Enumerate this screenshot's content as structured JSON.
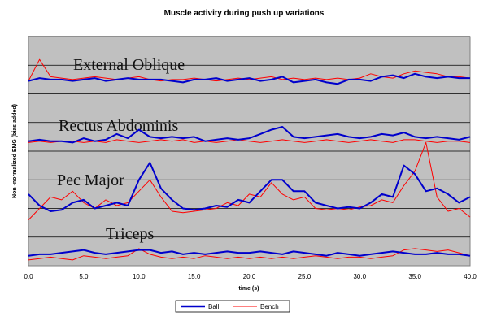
{
  "chart_data": {
    "type": "line",
    "title": "Muscle activity during push up variations",
    "xlabel": "time (s)",
    "ylabel": "Non -normalized EMG (bias added)",
    "xlim": [
      0,
      40
    ],
    "x_ticks": [
      "0.0",
      "5.0",
      "10.0",
      "15.0",
      "20.0",
      "25.0",
      "30.0",
      "35.0",
      "40.0"
    ],
    "ylim": [
      0,
      8
    ],
    "y_gridlines": [
      1,
      2,
      3,
      4,
      5,
      6,
      7,
      8
    ],
    "grid": true,
    "plot_background": "#c0c0c0",
    "legend_position": "bottom",
    "panel_labels": [
      "External Oblique",
      "Rectus Abdominis",
      "Pec Major",
      "Triceps"
    ],
    "series": [
      {
        "name": "Ball",
        "color": "#0000cc",
        "x": [
          0,
          1,
          2,
          3,
          4,
          5,
          6,
          7,
          8,
          9,
          10,
          11,
          12,
          13,
          14,
          15,
          16,
          17,
          18,
          19,
          20,
          21,
          22,
          23,
          24,
          25,
          26,
          27,
          28,
          29,
          30,
          31,
          32,
          33,
          34,
          35,
          36,
          37,
          38,
          39,
          40
        ],
        "values_external_oblique": [
          6.45,
          6.55,
          6.5,
          6.5,
          6.45,
          6.5,
          6.55,
          6.45,
          6.5,
          6.55,
          6.5,
          6.5,
          6.5,
          6.45,
          6.4,
          6.5,
          6.5,
          6.55,
          6.45,
          6.5,
          6.55,
          6.45,
          6.5,
          6.6,
          6.4,
          6.45,
          6.5,
          6.4,
          6.35,
          6.5,
          6.5,
          6.45,
          6.6,
          6.65,
          6.55,
          6.7,
          6.6,
          6.55,
          6.6,
          6.55,
          6.55
        ],
        "values_rectus_abdominis": [
          4.35,
          4.4,
          4.35,
          4.35,
          4.3,
          4.45,
          4.35,
          4.4,
          4.6,
          4.45,
          4.75,
          4.5,
          4.45,
          4.5,
          4.45,
          4.5,
          4.35,
          4.4,
          4.45,
          4.4,
          4.45,
          4.6,
          4.75,
          4.85,
          4.5,
          4.45,
          4.5,
          4.55,
          4.6,
          4.5,
          4.45,
          4.5,
          4.6,
          4.55,
          4.65,
          4.5,
          4.45,
          4.5,
          4.45,
          4.4,
          4.5
        ],
        "values_pec_major": [
          2.5,
          2.1,
          1.9,
          1.95,
          2.2,
          2.3,
          2.0,
          2.1,
          2.2,
          2.1,
          3.0,
          3.6,
          2.7,
          2.3,
          2.0,
          1.95,
          2.0,
          2.1,
          2.05,
          2.3,
          2.2,
          2.6,
          3.0,
          3.0,
          2.6,
          2.6,
          2.2,
          2.1,
          2.0,
          2.05,
          2.0,
          2.2,
          2.5,
          2.4,
          3.5,
          3.2,
          2.6,
          2.7,
          2.5,
          2.2,
          2.4
        ],
        "values_triceps": [
          0.35,
          0.4,
          0.4,
          0.45,
          0.5,
          0.55,
          0.45,
          0.4,
          0.45,
          0.5,
          0.55,
          0.55,
          0.45,
          0.5,
          0.4,
          0.45,
          0.4,
          0.45,
          0.5,
          0.45,
          0.45,
          0.5,
          0.45,
          0.4,
          0.5,
          0.45,
          0.4,
          0.35,
          0.45,
          0.4,
          0.35,
          0.4,
          0.45,
          0.5,
          0.45,
          0.4,
          0.4,
          0.45,
          0.4,
          0.4,
          0.35
        ]
      },
      {
        "name": "Bench",
        "color": "#ff0000",
        "x": [
          0,
          1,
          2,
          3,
          4,
          5,
          6,
          7,
          8,
          9,
          10,
          11,
          12,
          13,
          14,
          15,
          16,
          17,
          18,
          19,
          20,
          21,
          22,
          23,
          24,
          25,
          26,
          27,
          28,
          29,
          30,
          31,
          32,
          33,
          34,
          35,
          36,
          37,
          38,
          39,
          40
        ],
        "values_external_oblique": [
          6.45,
          7.2,
          6.6,
          6.55,
          6.5,
          6.55,
          6.6,
          6.55,
          6.5,
          6.55,
          6.6,
          6.5,
          6.45,
          6.5,
          6.5,
          6.55,
          6.5,
          6.45,
          6.5,
          6.55,
          6.5,
          6.55,
          6.6,
          6.5,
          6.55,
          6.5,
          6.55,
          6.5,
          6.55,
          6.5,
          6.55,
          6.7,
          6.6,
          6.55,
          6.7,
          6.8,
          6.75,
          6.7,
          6.6,
          6.6,
          6.55
        ],
        "values_rectus_abdominis": [
          4.3,
          4.35,
          4.3,
          4.35,
          4.35,
          4.3,
          4.35,
          4.3,
          4.4,
          4.35,
          4.3,
          4.35,
          4.4,
          4.35,
          4.4,
          4.3,
          4.35,
          4.3,
          4.35,
          4.4,
          4.35,
          4.3,
          4.35,
          4.4,
          4.35,
          4.3,
          4.35,
          4.4,
          4.35,
          4.3,
          4.35,
          4.4,
          4.35,
          4.3,
          4.4,
          4.4,
          4.35,
          4.3,
          4.35,
          4.35,
          4.3
        ],
        "values_pec_major": [
          1.6,
          2.0,
          2.4,
          2.3,
          2.6,
          2.2,
          2.0,
          2.3,
          2.1,
          2.2,
          2.6,
          3.0,
          2.4,
          1.9,
          1.85,
          1.9,
          1.95,
          2.0,
          2.2,
          2.1,
          2.5,
          2.4,
          2.9,
          2.5,
          2.3,
          2.4,
          2.0,
          1.95,
          2.0,
          1.95,
          2.05,
          2.1,
          2.3,
          2.2,
          2.8,
          3.3,
          4.3,
          2.4,
          1.9,
          2.0,
          1.7
        ],
        "values_triceps": [
          0.2,
          0.25,
          0.3,
          0.25,
          0.2,
          0.35,
          0.3,
          0.25,
          0.3,
          0.35,
          0.6,
          0.4,
          0.3,
          0.25,
          0.3,
          0.25,
          0.35,
          0.3,
          0.25,
          0.3,
          0.25,
          0.3,
          0.25,
          0.3,
          0.25,
          0.3,
          0.35,
          0.3,
          0.25,
          0.3,
          0.3,
          0.25,
          0.3,
          0.35,
          0.55,
          0.6,
          0.55,
          0.5,
          0.55,
          0.45,
          0.35
        ]
      }
    ]
  }
}
